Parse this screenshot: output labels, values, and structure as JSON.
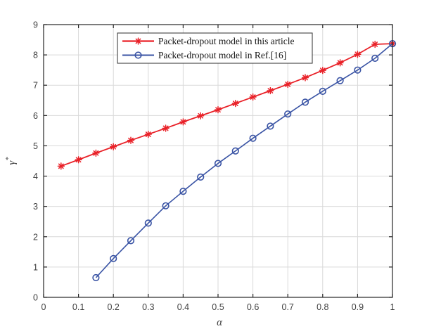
{
  "figure": {
    "background": "#ffffff",
    "axis_color": "#262626",
    "grid_color": "#d9d9d9",
    "tick_label_color": "#3f3f3f"
  },
  "chart_data": {
    "type": "line",
    "title": "",
    "xlabel": "α",
    "ylabel": "γ*",
    "xlim": [
      0,
      1
    ],
    "ylim": [
      0,
      9
    ],
    "grid": true,
    "legend_position": "top-center",
    "x_tick_values": [
      0,
      0.1,
      0.2,
      0.3,
      0.4,
      0.5,
      0.6,
      0.7,
      0.8,
      0.9,
      1
    ],
    "x_tick_labels": [
      "0",
      "0.1",
      "0.2",
      "0.3",
      "0.4",
      "0.5",
      "0.6",
      "0.7",
      "0.8",
      "0.9",
      "1"
    ],
    "y_tick_values": [
      0,
      1,
      2,
      3,
      4,
      5,
      6,
      7,
      8,
      9
    ],
    "y_tick_labels": [
      "0",
      "1",
      "2",
      "3",
      "4",
      "5",
      "6",
      "7",
      "8",
      "9"
    ],
    "series": [
      {
        "name": "Packet-dropout model in this article",
        "color": "#e92128",
        "marker": "asterisk",
        "line_width": 1.8,
        "x": [
          0.05,
          0.1,
          0.15,
          0.2,
          0.25,
          0.3,
          0.35,
          0.4,
          0.45,
          0.5,
          0.55,
          0.6,
          0.65,
          0.7,
          0.75,
          0.8,
          0.85,
          0.9,
          0.95,
          1.0
        ],
        "y": [
          4.33,
          4.54,
          4.76,
          4.97,
          5.18,
          5.38,
          5.58,
          5.79,
          5.99,
          6.19,
          6.4,
          6.61,
          6.82,
          7.03,
          7.25,
          7.49,
          7.74,
          8.02,
          8.35,
          8.37
        ]
      },
      {
        "name": "Packet-dropout model in Ref.[16]",
        "color": "#3953a4",
        "marker": "circle",
        "line_width": 1.6,
        "x": [
          0.15,
          0.2,
          0.25,
          0.3,
          0.35,
          0.4,
          0.45,
          0.5,
          0.55,
          0.6,
          0.65,
          0.7,
          0.75,
          0.8,
          0.85,
          0.9,
          0.95,
          1.0
        ],
        "y": [
          0.65,
          1.28,
          1.87,
          2.45,
          3.02,
          3.5,
          3.97,
          4.42,
          4.83,
          5.25,
          5.65,
          6.05,
          6.44,
          6.8,
          7.15,
          7.5,
          7.89,
          8.37
        ]
      }
    ]
  }
}
